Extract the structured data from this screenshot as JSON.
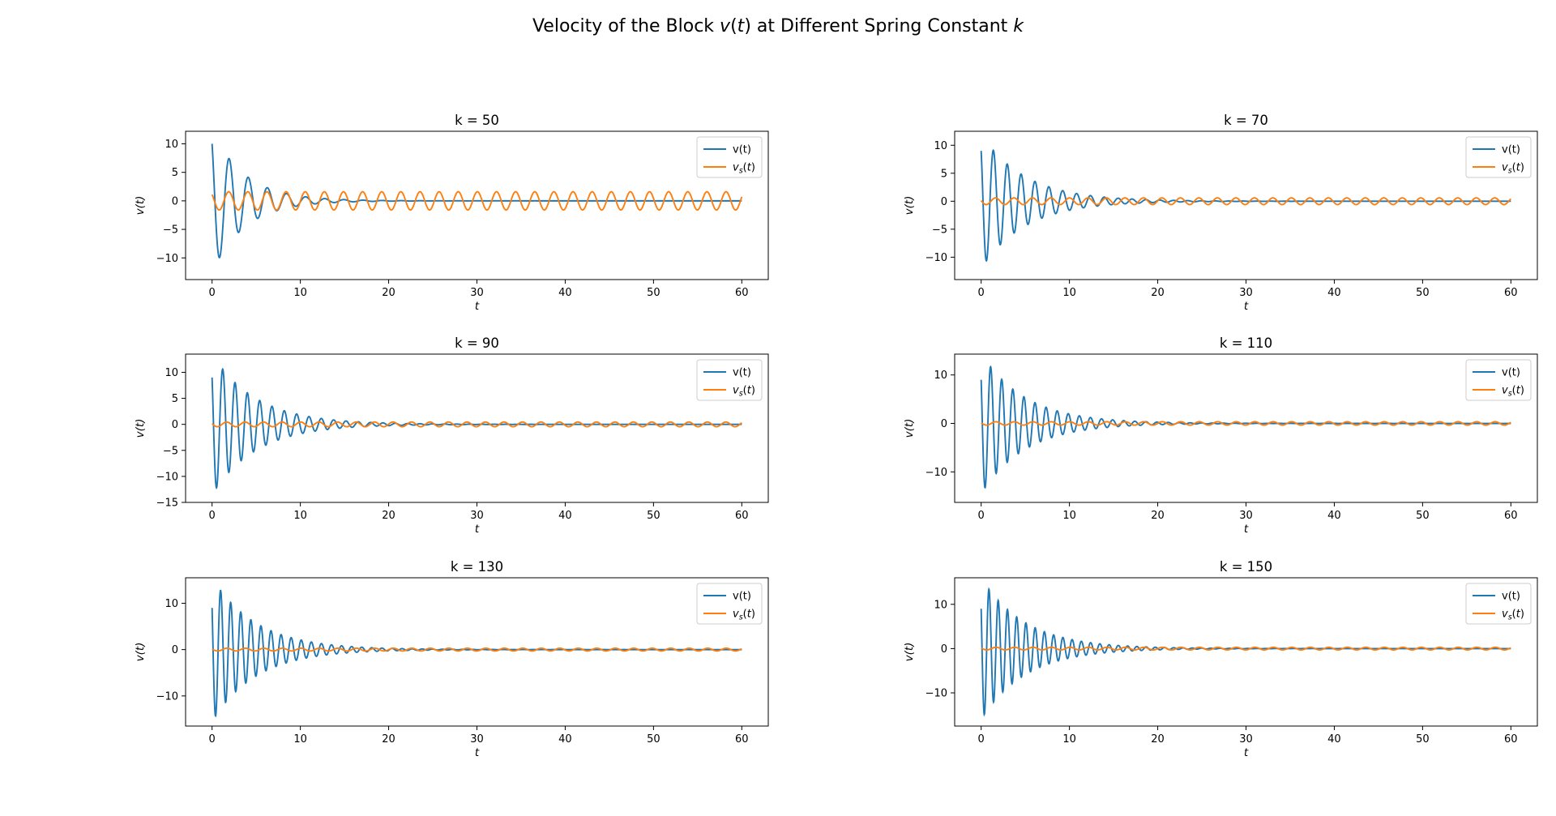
{
  "figure": {
    "title_plain": "Velocity of the Block ",
    "title_var": "v",
    "title_paren_open": "(",
    "title_var_t": "t",
    "title_paren_close": ")",
    "title_plain2": " at Different Spring Constant ",
    "title_var_k": "k"
  },
  "colors": {
    "v": "#1f77b4",
    "vs": "#ff7f0e"
  },
  "chart_data": [
    {
      "type": "line",
      "title": "k = 50",
      "xlabel": "t",
      "ylabel": "v(t)",
      "xlim": [
        -3,
        63
      ],
      "ylim": [
        -13.8,
        12.2
      ],
      "xticks": [
        0,
        10,
        20,
        30,
        40,
        50,
        60
      ],
      "yticks": [
        -10,
        -5,
        0,
        5,
        10
      ],
      "legend": {
        "position": "upper right",
        "entries": [
          "v(t)",
          "v_s(t)"
        ]
      },
      "series": [
        {
          "name": "v(t)",
          "color": "#1f77b4",
          "model": "damped_oscillation",
          "x_range": [
            0,
            60
          ],
          "initial_value": 10,
          "peak_amplitude": 12.5,
          "decay_rate": 0.27,
          "angular_frequency": 2.9
        },
        {
          "name": "v_s(t)",
          "color": "#ff7f0e",
          "model": "sinusoid",
          "x_range": [
            0,
            60
          ],
          "initial_value": 1.1,
          "amplitude": 1.6,
          "angular_frequency": 2.9
        }
      ]
    },
    {
      "type": "line",
      "title": "k = 70",
      "xlabel": "t",
      "ylabel": "v(t)",
      "xlim": [
        -3,
        63
      ],
      "ylim": [
        -14,
        12.5
      ],
      "xticks": [
        0,
        10,
        20,
        30,
        40,
        50,
        60
      ],
      "yticks": [
        -10,
        -5,
        0,
        5,
        10
      ],
      "legend": {
        "position": "upper right",
        "entries": [
          "v(t)",
          "v_s(t)"
        ]
      },
      "series": [
        {
          "name": "v(t)",
          "color": "#1f77b4",
          "model": "damped_oscillation",
          "x_range": [
            0,
            60
          ],
          "initial_value": 9,
          "peak_amplitude": 12.0,
          "decay_rate": 0.2,
          "angular_frequency": 4.0
        },
        {
          "name": "v_s(t)",
          "color": "#ff7f0e",
          "model": "sinusoid",
          "x_range": [
            0,
            60
          ],
          "initial_value": 0.1,
          "amplitude": 0.6,
          "angular_frequency": 3.0
        }
      ]
    },
    {
      "type": "line",
      "title": "k = 90",
      "xlabel": "t",
      "ylabel": "v(t)",
      "xlim": [
        -3,
        63
      ],
      "ylim": [
        -15,
        13.5
      ],
      "xticks": [
        0,
        10,
        20,
        30,
        40,
        50,
        60
      ],
      "yticks": [
        -15,
        -10,
        -5,
        0,
        5,
        10
      ],
      "legend": {
        "position": "upper right",
        "entries": [
          "v(t)",
          "v_s(t)"
        ]
      },
      "series": [
        {
          "name": "v(t)",
          "color": "#1f77b4",
          "model": "damped_oscillation",
          "x_range": [
            0,
            60
          ],
          "initial_value": 9,
          "peak_amplitude": 13.5,
          "decay_rate": 0.2,
          "angular_frequency": 4.5
        },
        {
          "name": "v_s(t)",
          "color": "#ff7f0e",
          "model": "sinusoid",
          "x_range": [
            0,
            60
          ],
          "initial_value": 0.1,
          "amplitude": 0.45,
          "angular_frequency": 3.0
        }
      ]
    },
    {
      "type": "line",
      "title": "k = 110",
      "xlabel": "t",
      "ylabel": "v(t)",
      "xlim": [
        -3,
        63
      ],
      "ylim": [
        -16.3,
        14.3
      ],
      "xticks": [
        0,
        10,
        20,
        30,
        40,
        50,
        60
      ],
      "yticks": [
        -10,
        0,
        10
      ],
      "legend": {
        "position": "upper right",
        "entries": [
          "v(t)",
          "v_s(t)"
        ]
      },
      "series": [
        {
          "name": "v(t)",
          "color": "#1f77b4",
          "model": "damped_oscillation",
          "x_range": [
            0,
            60
          ],
          "initial_value": 9,
          "peak_amplitude": 14.5,
          "decay_rate": 0.2,
          "angular_frequency": 5.0
        },
        {
          "name": "v_s(t)",
          "color": "#ff7f0e",
          "model": "sinusoid",
          "x_range": [
            0,
            60
          ],
          "initial_value": 0.1,
          "amplitude": 0.35,
          "angular_frequency": 3.0
        }
      ]
    },
    {
      "type": "line",
      "title": "k = 130",
      "xlabel": "t",
      "ylabel": "v(t)",
      "xlim": [
        -3,
        63
      ],
      "ylim": [
        -16.5,
        15.5
      ],
      "xticks": [
        0,
        10,
        20,
        30,
        40,
        50,
        60
      ],
      "yticks": [
        -10,
        0,
        10
      ],
      "legend": {
        "position": "upper right",
        "entries": [
          "v(t)",
          "v_s(t)"
        ]
      },
      "series": [
        {
          "name": "v(t)",
          "color": "#1f77b4",
          "model": "damped_oscillation",
          "x_range": [
            0,
            60
          ],
          "initial_value": 9,
          "peak_amplitude": 15.5,
          "decay_rate": 0.2,
          "angular_frequency": 5.5
        },
        {
          "name": "v_s(t)",
          "color": "#ff7f0e",
          "model": "sinusoid",
          "x_range": [
            0,
            60
          ],
          "initial_value": 0.1,
          "amplitude": 0.3,
          "angular_frequency": 3.0
        }
      ]
    },
    {
      "type": "line",
      "title": "k = 150",
      "xlabel": "t",
      "ylabel": "v(t)",
      "xlim": [
        -3,
        63
      ],
      "ylim": [
        -17.5,
        16
      ],
      "xticks": [
        0,
        10,
        20,
        30,
        40,
        50,
        60
      ],
      "yticks": [
        -10,
        0,
        10
      ],
      "legend": {
        "position": "upper right",
        "entries": [
          "v(t)",
          "v_s(t)"
        ]
      },
      "series": [
        {
          "name": "v(t)",
          "color": "#1f77b4",
          "model": "damped_oscillation",
          "x_range": [
            0,
            60
          ],
          "initial_value": 9,
          "peak_amplitude": 16.0,
          "decay_rate": 0.2,
          "angular_frequency": 6.0
        },
        {
          "name": "v_s(t)",
          "color": "#ff7f0e",
          "model": "sinusoid",
          "x_range": [
            0,
            60
          ],
          "initial_value": 0.1,
          "amplitude": 0.3,
          "angular_frequency": 3.0
        }
      ]
    }
  ]
}
